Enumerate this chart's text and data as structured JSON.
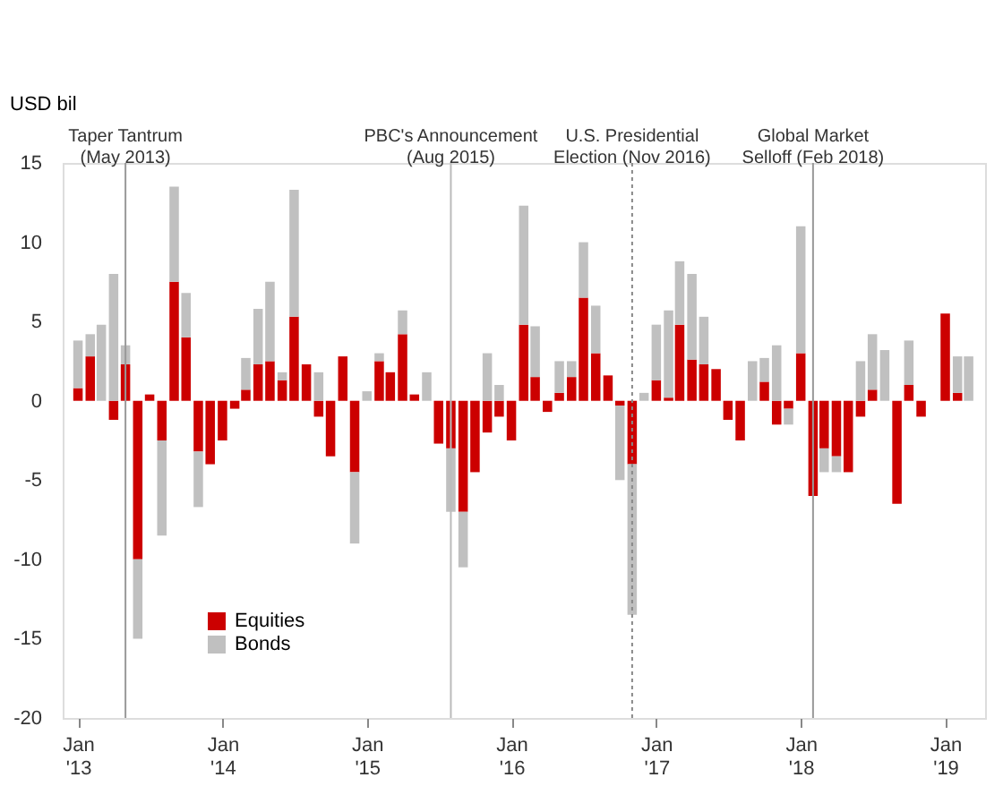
{
  "chart_data": {
    "type": "bar",
    "stacked": true,
    "ylabel": "USD bil",
    "x": [
      "2013-01",
      "2013-02",
      "2013-03",
      "2013-04",
      "2013-05",
      "2013-06",
      "2013-07",
      "2013-08",
      "2013-09",
      "2013-10",
      "2013-11",
      "2013-12",
      "2014-01",
      "2014-02",
      "2014-03",
      "2014-04",
      "2014-05",
      "2014-06",
      "2014-07",
      "2014-08",
      "2014-09",
      "2014-10",
      "2014-11",
      "2014-12",
      "2015-01",
      "2015-02",
      "2015-03",
      "2015-04",
      "2015-05",
      "2015-06",
      "2015-07",
      "2015-08",
      "2015-09",
      "2015-10",
      "2015-11",
      "2015-12",
      "2016-01",
      "2016-02",
      "2016-03",
      "2016-04",
      "2016-05",
      "2016-06",
      "2016-07",
      "2016-08",
      "2016-09",
      "2016-10",
      "2016-11",
      "2016-12",
      "2017-01",
      "2017-02",
      "2017-03",
      "2017-04",
      "2017-05",
      "2017-06",
      "2017-07",
      "2017-08",
      "2017-09",
      "2017-10",
      "2017-11",
      "2017-12",
      "2018-01",
      "2018-02",
      "2018-03",
      "2018-04",
      "2018-05",
      "2018-06",
      "2018-07",
      "2018-08",
      "2018-09",
      "2018-10",
      "2018-11",
      "2018-12",
      "2019-01",
      "2019-02",
      "2019-03"
    ],
    "series": [
      {
        "name": "Equities",
        "color": "#cc0000",
        "values": [
          0.8,
          2.8,
          0,
          -1.2,
          2.3,
          -10,
          0.4,
          -2.5,
          7.5,
          4,
          -3.2,
          -4,
          -2.5,
          -0.5,
          0.7,
          2.3,
          2.5,
          1.3,
          5.3,
          2.3,
          -1,
          -3.5,
          2.8,
          -4.5,
          0,
          2.5,
          1.8,
          4.2,
          0.4,
          0,
          -2.7,
          -3,
          -7,
          -4.5,
          -2,
          -1,
          -2.5,
          4.8,
          1.5,
          -0.7,
          0.5,
          1.5,
          6.5,
          3,
          1.6,
          -0.3,
          -4,
          0,
          1.3,
          0.2,
          4.8,
          2.6,
          2.3,
          2,
          -1.2,
          -2.5,
          0,
          1.2,
          -1.5,
          -0.5,
          3,
          -6,
          -3,
          -3.5,
          -4.5,
          -1,
          0.7,
          0,
          -6.5,
          1,
          -1,
          0,
          5.5,
          0.5,
          0
        ]
      },
      {
        "name": "Bonds",
        "color": "#c0c0c0",
        "values": [
          3,
          1.4,
          4.8,
          8,
          1.2,
          -5,
          0,
          -6,
          6,
          2.8,
          -3.5,
          0,
          0,
          0,
          2,
          3.5,
          5,
          0.5,
          8,
          0,
          1.8,
          0,
          0,
          -4.5,
          0.6,
          0.5,
          0,
          1.5,
          0,
          1.8,
          0,
          -4,
          -3.5,
          0,
          3,
          1,
          0,
          7.5,
          3.2,
          0,
          2,
          1,
          3.5,
          3,
          0,
          -4.7,
          -9.5,
          0.5,
          3.5,
          5.5,
          4,
          5.4,
          3,
          0,
          0,
          0,
          2.5,
          1.5,
          3.5,
          -1,
          8,
          0,
          -1.5,
          -1,
          0,
          2.5,
          3.5,
          3.2,
          0,
          2.8,
          0,
          0,
          0,
          2.3,
          2.8
        ]
      }
    ],
    "xlim": [
      "2012-12-16",
      "2019-03-20"
    ],
    "xticks": [
      {
        "value": "2013-01",
        "label": "Jan '13"
      },
      {
        "value": "2014-01",
        "label": "Jan '14"
      },
      {
        "value": "2015-01",
        "label": "Jan '15"
      },
      {
        "value": "2016-01",
        "label": "Jan '16"
      },
      {
        "value": "2017-01",
        "label": "Jan '17"
      },
      {
        "value": "2018-01",
        "label": "Jan '18"
      },
      {
        "value": "2019-01",
        "label": "Jan '19"
      }
    ],
    "ylim": [
      -20,
      15
    ],
    "yticks": [
      -20,
      -15,
      -10,
      -5,
      0,
      5,
      10,
      15
    ],
    "ref_lines": [
      {
        "axis": "x",
        "value": "2013-05",
        "label": "Taper Tantrum (May 2013)",
        "color": "#999999",
        "line_style": "solid"
      },
      {
        "axis": "x",
        "value": "2015-08",
        "label": "PBC's Announcement (Aug 2015)",
        "color": "#bbbbbb",
        "line_style": "solid"
      },
      {
        "axis": "x",
        "value": "2016-11",
        "label": "U.S. Presidential Election (Nov 2016)",
        "color": "#888888",
        "line_style": "dotted"
      },
      {
        "axis": "x",
        "value": "2018-02",
        "label": "Global Market Selloff (Feb 2018)",
        "color": "#999999",
        "line_style": "solid"
      }
    ],
    "legend": "bottom left",
    "grid": false
  }
}
